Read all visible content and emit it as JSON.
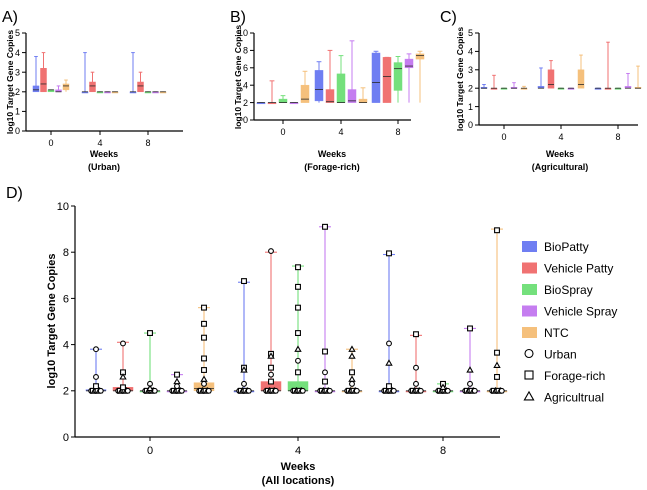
{
  "figure": {
    "groups": [
      "BioPatty",
      "Vehicle Patty",
      "BioSpray",
      "Vehicle Spray",
      "NTC"
    ],
    "colors": {
      "BioPatty": "#6f7ef2",
      "Vehicle Patty": "#f07272",
      "BioSpray": "#74e07c",
      "Vehicle Spray": "#c57df0",
      "NTC": "#f5c07c"
    },
    "legend_groups": [
      "BioPatty",
      "Vehicle Patty",
      "BioSpray",
      "Vehicle Spray",
      "NTC"
    ],
    "legend_markers": [
      {
        "label": "Urban",
        "shape": "circle"
      },
      {
        "label": "Forage-rich",
        "shape": "square"
      },
      {
        "label": "Agricultrual",
        "shape": "triangle"
      }
    ]
  },
  "chart_data": [
    {
      "panel": "A)",
      "type": "box",
      "ylabel": "log10 Target Gene Copies",
      "xlabel": "Weeks",
      "xlabel2": "(Urban)",
      "categories": [
        "0",
        "4",
        "8"
      ],
      "yticks": [
        0,
        1,
        2,
        3,
        4,
        5
      ],
      "ylim": [
        0,
        5
      ],
      "boxes": [
        [
          [
            2,
            2.0,
            2.1,
            2.3,
            3.8
          ],
          [
            2,
            2.0,
            2.4,
            3.2,
            4.0
          ],
          [
            2,
            2.0,
            2.1,
            2.1,
            2.1
          ],
          [
            2,
            2.0,
            2.0,
            2.1,
            2.3
          ],
          [
            2,
            2.1,
            2.3,
            2.4,
            2.6
          ]
        ],
        [
          [
            2,
            2.0,
            2.0,
            2.0,
            4.0
          ],
          [
            2,
            2.0,
            2.3,
            2.5,
            3.0
          ],
          [
            2,
            2.0,
            2.0,
            2.0,
            2.0
          ],
          [
            2,
            2.0,
            2.0,
            2.0,
            2.0
          ],
          [
            2,
            2.0,
            2.0,
            2.0,
            2.0
          ]
        ],
        [
          [
            2,
            2.0,
            2.0,
            2.0,
            4.0
          ],
          [
            2,
            2.0,
            2.3,
            2.5,
            3.0
          ],
          [
            2,
            2.0,
            2.0,
            2.0,
            2.0
          ],
          [
            2,
            2.0,
            2.0,
            2.0,
            2.0
          ],
          [
            2,
            2.0,
            2.0,
            2.0,
            2.0
          ]
        ]
      ]
    },
    {
      "panel": "B)",
      "type": "box",
      "ylabel": "log10 Target Gene Copies",
      "xlabel": "Weeks",
      "xlabel2": "(Forage-rich)",
      "categories": [
        "0",
        "4",
        "8"
      ],
      "yticks": [
        0,
        2,
        4,
        6,
        8,
        10
      ],
      "ylim": [
        0,
        10
      ],
      "boxes": [
        [
          [
            2,
            2.0,
            2.0,
            2.0,
            2.0
          ],
          [
            2,
            2.0,
            2.0,
            2.0,
            4.5
          ],
          [
            2,
            2.0,
            2.0,
            2.4,
            2.8
          ],
          [
            2,
            2.0,
            2.0,
            2.0,
            2.0
          ],
          [
            2,
            2.0,
            2.4,
            4.0,
            5.6
          ]
        ],
        [
          [
            2,
            2.2,
            3.5,
            5.7,
            6.7
          ],
          [
            2,
            2.0,
            2.1,
            3.5,
            8.0
          ],
          [
            2,
            2.0,
            2.0,
            5.3,
            7.4
          ],
          [
            2,
            2.0,
            2.2,
            3.5,
            9.1
          ],
          [
            2,
            2.0,
            2.0,
            2.4,
            3.7
          ]
        ],
        [
          [
            2,
            2.0,
            4.3,
            7.7,
            7.9
          ],
          [
            2,
            2.0,
            5.0,
            7.2,
            7.2
          ],
          [
            2,
            3.4,
            5.9,
            6.6,
            7.3
          ],
          [
            2,
            6.0,
            6.2,
            7.0,
            7.6
          ],
          [
            2,
            7.0,
            7.4,
            7.6,
            7.9
          ]
        ]
      ]
    },
    {
      "panel": "C)",
      "type": "box",
      "ylabel": "log10 Target Gene Copies",
      "xlabel": "Weeks",
      "xlabel2": "(Agricultural)",
      "categories": [
        "0",
        "4",
        "8"
      ],
      "yticks": [
        0,
        1,
        2,
        3,
        4,
        5
      ],
      "ylim": [
        0,
        5
      ],
      "boxes": [
        [
          [
            2,
            2.0,
            2.0,
            2.05,
            2.2
          ],
          [
            2,
            2.0,
            2.0,
            2.0,
            2.7
          ],
          [
            2,
            2.0,
            2.0,
            2.0,
            2.0
          ],
          [
            2,
            2.0,
            2.0,
            2.05,
            2.3
          ],
          [
            2,
            2.0,
            2.0,
            2.0,
            2.1
          ]
        ],
        [
          [
            2,
            2.0,
            2.0,
            2.1,
            3.1
          ],
          [
            2,
            2.0,
            2.2,
            3.0,
            3.5
          ],
          [
            2,
            2.0,
            2.0,
            2.0,
            2.0
          ],
          [
            2,
            2.0,
            2.0,
            2.0,
            2.0
          ],
          [
            2,
            2.0,
            2.2,
            3.0,
            3.8
          ]
        ],
        [
          [
            2,
            2.0,
            2.0,
            2.0,
            2.0
          ],
          [
            2,
            2.0,
            2.0,
            2.0,
            4.5
          ],
          [
            2,
            2.0,
            2.0,
            2.0,
            2.0
          ],
          [
            2,
            2.0,
            2.0,
            2.1,
            2.8
          ],
          [
            2,
            2.0,
            2.0,
            2.05,
            3.2
          ]
        ]
      ]
    },
    {
      "panel": "D)",
      "type": "box",
      "ylabel": "log10 Target Gene Copies",
      "xlabel": "Weeks",
      "xlabel2": "(All locations)",
      "categories": [
        "0",
        "4",
        "8"
      ],
      "yticks": [
        0,
        2,
        4,
        6,
        8,
        10
      ],
      "ylim": [
        0,
        10
      ],
      "boxes": [
        [
          [
            2,
            2.0,
            2.0,
            2.05,
            3.8
          ],
          [
            2,
            2.0,
            2.0,
            2.15,
            4.1
          ],
          [
            2,
            2.0,
            2.0,
            2.0,
            4.5
          ],
          [
            2,
            2.0,
            2.0,
            2.0,
            2.7
          ],
          [
            2,
            2.0,
            2.1,
            2.35,
            5.6
          ]
        ],
        [
          [
            2,
            2.0,
            2.0,
            2.0,
            6.7
          ],
          [
            2,
            2.0,
            2.0,
            2.4,
            8.0
          ],
          [
            2,
            2.0,
            2.0,
            2.4,
            7.4
          ],
          [
            2,
            2.0,
            2.0,
            2.0,
            9.1
          ],
          [
            2,
            2.0,
            2.0,
            2.0,
            3.8
          ]
        ],
        [
          [
            2,
            2.0,
            2.0,
            2.0,
            7.9
          ],
          [
            2,
            2.0,
            2.0,
            2.0,
            4.4
          ],
          [
            2,
            2.0,
            2.0,
            2.0,
            2.3
          ],
          [
            2,
            2.0,
            2.0,
            2.0,
            4.7
          ],
          [
            2,
            2.0,
            2.0,
            2.0,
            9.0
          ]
        ]
      ],
      "points": [
        [
          [
            [
              3.8,
              "circle"
            ],
            [
              2.6,
              "circle"
            ],
            [
              2.2,
              "square"
            ]
          ],
          [
            [
              4.05,
              "circle"
            ],
            [
              2.8,
              "square"
            ],
            [
              2.6,
              "triangle"
            ],
            [
              2.15,
              "square"
            ]
          ],
          [
            [
              4.5,
              "square"
            ],
            [
              2.3,
              "circle"
            ],
            [
              2.1,
              "triangle"
            ]
          ],
          [
            [
              2.7,
              "square"
            ],
            [
              2.4,
              "triangle"
            ],
            [
              2.2,
              "circle"
            ]
          ],
          [
            [
              5.6,
              "square"
            ],
            [
              4.9,
              "square"
            ],
            [
              4.3,
              "square"
            ],
            [
              3.4,
              "square"
            ],
            [
              2.9,
              "square"
            ],
            [
              2.5,
              "triangle"
            ],
            [
              2.3,
              "circle"
            ]
          ]
        ],
        [
          [
            [
              6.75,
              "square"
            ],
            [
              3.0,
              "square"
            ],
            [
              2.9,
              "triangle"
            ],
            [
              2.3,
              "circle"
            ]
          ],
          [
            [
              8.05,
              "circle"
            ],
            [
              3.6,
              "square"
            ],
            [
              3.5,
              "triangle"
            ],
            [
              3.0,
              "square"
            ],
            [
              2.7,
              "circle"
            ],
            [
              2.4,
              "square"
            ]
          ],
          [
            [
              7.35,
              "square"
            ],
            [
              6.5,
              "square"
            ],
            [
              5.6,
              "square"
            ],
            [
              4.5,
              "square"
            ],
            [
              3.8,
              "triangle"
            ],
            [
              3.3,
              "circle"
            ],
            [
              2.8,
              "square"
            ]
          ],
          [
            [
              9.1,
              "square"
            ],
            [
              3.7,
              "square"
            ],
            [
              2.8,
              "circle"
            ],
            [
              2.4,
              "square"
            ]
          ],
          [
            [
              3.8,
              "triangle"
            ],
            [
              3.5,
              "triangle"
            ],
            [
              2.8,
              "square"
            ],
            [
              2.5,
              "triangle"
            ],
            [
              2.3,
              "circle"
            ]
          ]
        ],
        [
          [
            [
              7.95,
              "square"
            ],
            [
              4.05,
              "circle"
            ],
            [
              3.2,
              "triangle"
            ],
            [
              2.2,
              "square"
            ]
          ],
          [
            [
              4.45,
              "square"
            ],
            [
              3.0,
              "circle"
            ],
            [
              2.3,
              "circle"
            ]
          ],
          [
            [
              2.3,
              "square"
            ],
            [
              2.15,
              "triangle"
            ]
          ],
          [
            [
              4.7,
              "square"
            ],
            [
              2.9,
              "triangle"
            ],
            [
              2.3,
              "circle"
            ]
          ],
          [
            [
              8.95,
              "square"
            ],
            [
              3.65,
              "square"
            ],
            [
              3.1,
              "triangle"
            ],
            [
              2.6,
              "square"
            ]
          ]
        ]
      ]
    }
  ]
}
